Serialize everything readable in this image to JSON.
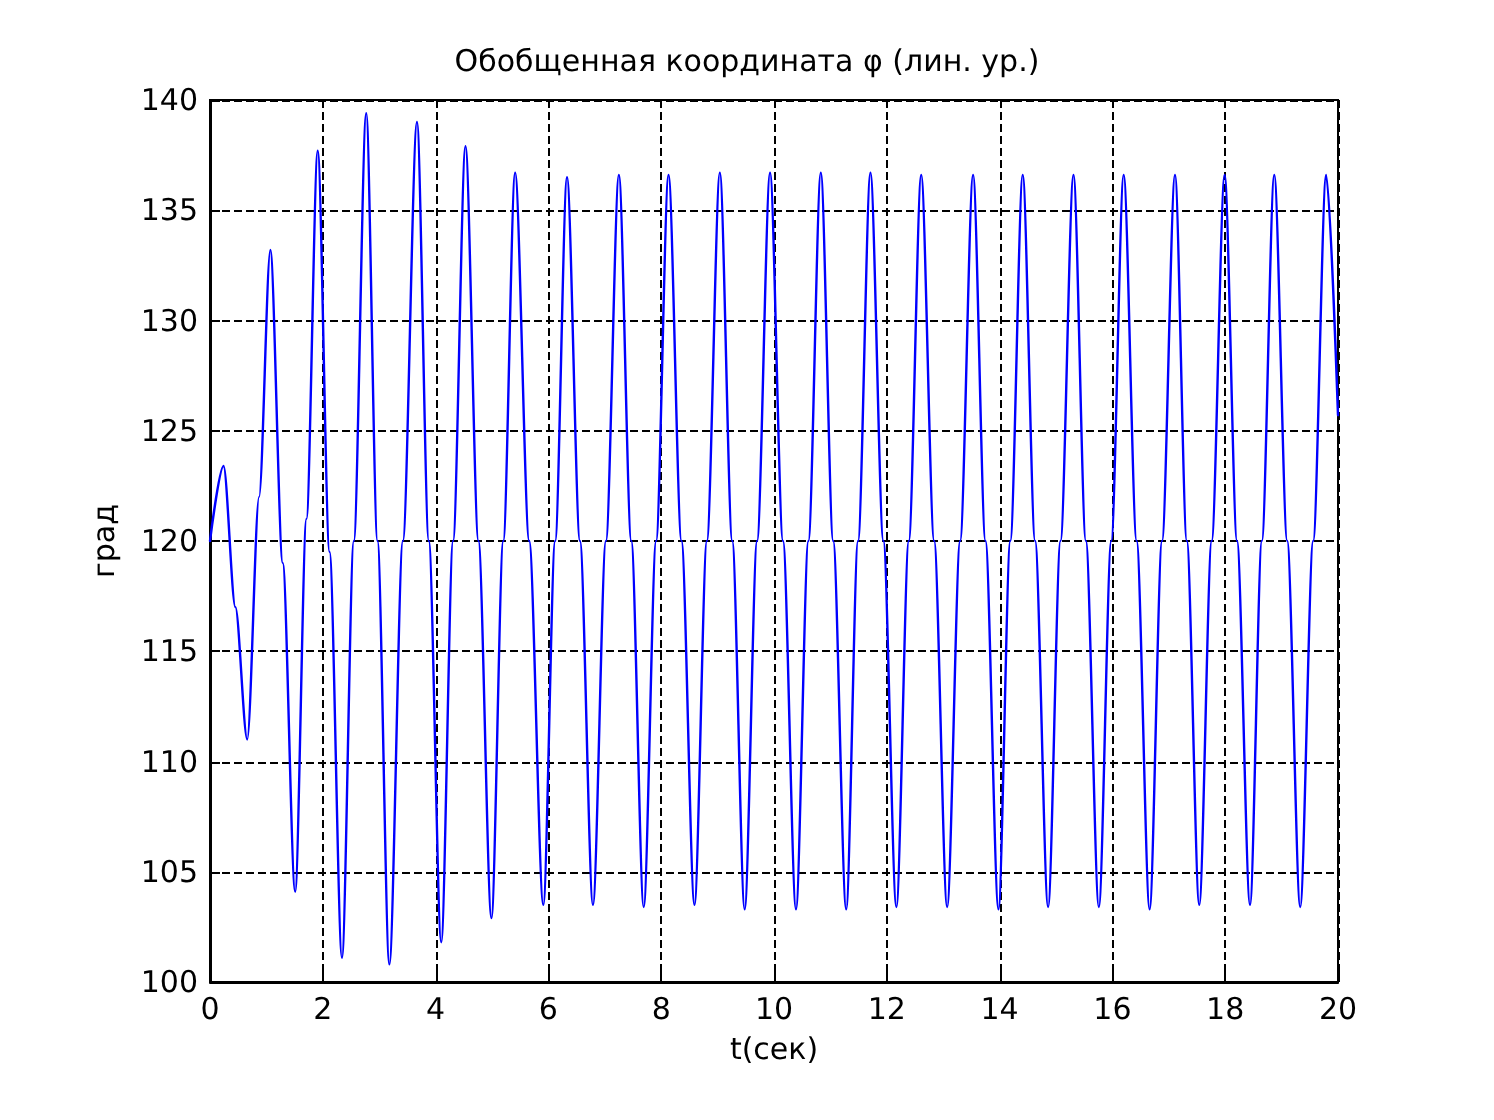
{
  "chart_data": {
    "type": "line",
    "title": "Обобщенная координата φ (лин. ур.)",
    "xlabel": "t(сек)",
    "ylabel": "град",
    "xlim": [
      0,
      20
    ],
    "xticks": [
      0,
      2,
      4,
      6,
      8,
      10,
      12,
      14,
      16,
      18,
      20
    ],
    "ylim": [
      100,
      140
    ],
    "yticks": [
      100,
      105,
      110,
      115,
      120,
      125,
      130,
      135,
      140
    ],
    "grid": true,
    "marker": "none",
    "line_style": "solid",
    "series": [
      {
        "color": "#0000ff",
        "x": [
          0,
          0.24,
          0.45,
          0.66,
          0.87,
          1.07,
          1.29,
          1.51,
          1.71,
          1.91,
          2.12,
          2.34,
          2.55,
          2.77,
          2.97,
          3.18,
          3.42,
          3.67,
          3.88,
          4.1,
          4.31,
          4.53,
          4.76,
          4.99,
          5.2,
          5.41,
          5.66,
          5.91,
          6.12,
          6.33,
          6.56,
          6.79,
          7.02,
          7.25,
          7.47,
          7.69,
          7.91,
          8.13,
          8.36,
          8.59,
          8.81,
          9.04,
          9.26,
          9.48,
          9.7,
          9.93,
          10.16,
          10.39,
          10.61,
          10.83,
          11.05,
          11.28,
          11.49,
          11.71,
          11.94,
          12.17,
          12.39,
          12.61,
          12.84,
          13.07,
          13.3,
          13.53,
          13.75,
          13.98,
          14.19,
          14.41,
          14.63,
          14.86,
          15.08,
          15.31,
          15.53,
          15.76,
          15.98,
          16.2,
          16.43,
          16.66,
          16.88,
          17.11,
          17.32,
          17.54,
          17.76,
          17.99,
          18.21,
          18.44,
          18.65,
          18.87,
          19.1,
          19.33,
          19.56,
          19.79,
          20
        ],
        "values": [
          120,
          123.4,
          117,
          111,
          122,
          133.2,
          119,
          104.1,
          121,
          137.7,
          119.5,
          101.1,
          120,
          139.4,
          120,
          100.8,
          120,
          139,
          120,
          101.8,
          120,
          137.9,
          120,
          102.9,
          120,
          136.7,
          120,
          103.5,
          120,
          136.5,
          120,
          103.5,
          120,
          136.6,
          120,
          103.4,
          120,
          136.6,
          120,
          103.5,
          120,
          136.7,
          120,
          103.3,
          120,
          136.7,
          120,
          103.3,
          120,
          136.7,
          120,
          103.3,
          120,
          136.7,
          120,
          103.4,
          120,
          136.6,
          120,
          103.4,
          120,
          136.6,
          120,
          103.3,
          120,
          136.6,
          120,
          103.4,
          120,
          136.6,
          120,
          103.4,
          120,
          136.6,
          120,
          103.3,
          120,
          136.6,
          120,
          103.5,
          120,
          136.6,
          120,
          103.5,
          120,
          136.6,
          120,
          103.4,
          120,
          136.6,
          125.7
        ]
      }
    ]
  }
}
